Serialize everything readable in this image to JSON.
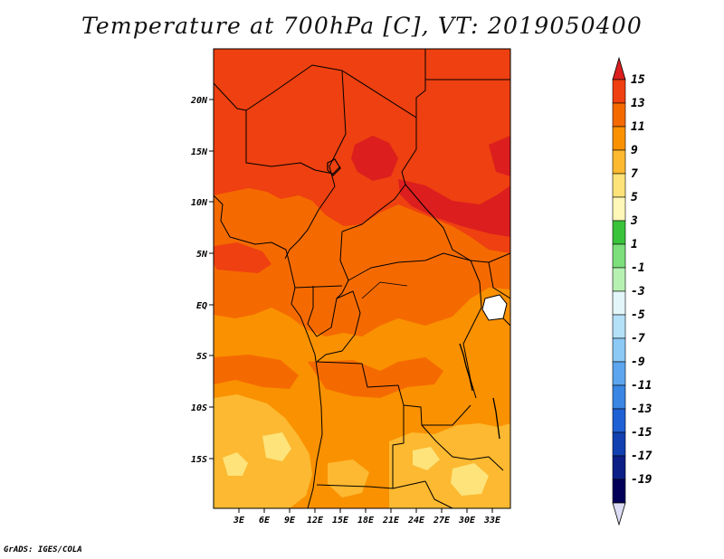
{
  "title": "Temperature at 700hPa [C], VT: 2019050400",
  "credit": "GrADS: IGES/COLA",
  "map": {
    "region": "Central Africa",
    "lon_range": [
      0,
      35
    ],
    "lat_range": [
      -20,
      24
    ],
    "xticks": [
      "3E",
      "6E",
      "9E",
      "12E",
      "15E",
      "18E",
      "21E",
      "24E",
      "27E",
      "30E",
      "33E"
    ],
    "yticks": [
      "20N",
      "15N",
      "10N",
      "5N",
      "EQ",
      "5S",
      "10S",
      "15S"
    ],
    "field": "temperature_700hPa",
    "units": "C"
  },
  "colorbar": {
    "labels": [
      "15",
      "13",
      "11",
      "9",
      "7",
      "5",
      "3",
      "1",
      "-1",
      "-3",
      "-5",
      "-7",
      "-9",
      "-11",
      "-13",
      "-15",
      "-17",
      "-19"
    ],
    "colors": [
      "#dc1e1e",
      "#ee4010",
      "#f56a00",
      "#fa9100",
      "#fcb931",
      "#fde37a",
      "#fff7b8",
      "#39c33b",
      "#7cdf7c",
      "#b7f1b2",
      "#e3f6f9",
      "#b4e0f8",
      "#8cc9f5",
      "#5da6ef",
      "#3a86e3",
      "#1f60d4",
      "#1240b0",
      "#0b1f86",
      "#03005a",
      "#dcdcf5"
    ]
  }
}
